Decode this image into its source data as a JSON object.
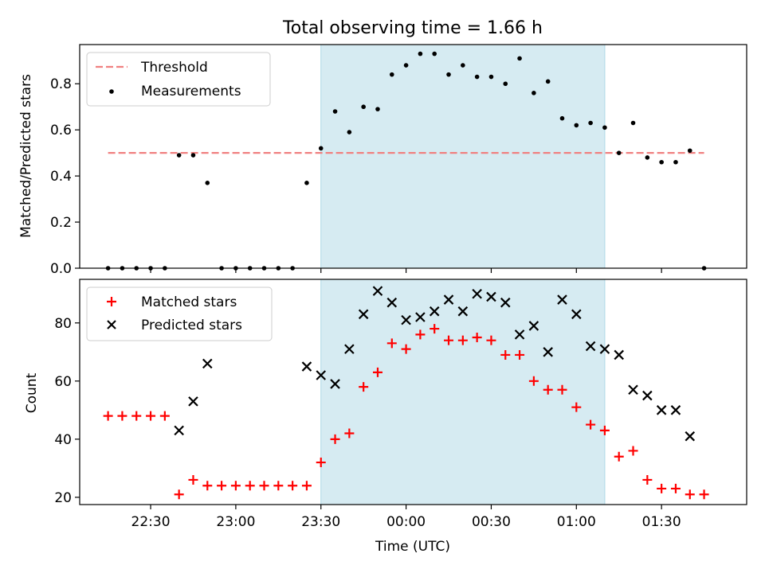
{
  "chart_data": [
    {
      "type": "scatter",
      "title": "Total observing time = 1.66 h",
      "xlabel": "",
      "ylabel": "Matched/Predicted stars",
      "ylim": [
        0,
        0.97
      ],
      "yticks": [
        0.0,
        0.2,
        0.4,
        0.6,
        0.8
      ],
      "ytick_labels": [
        "0.0",
        "0.2",
        "0.4",
        "0.6",
        "0.8"
      ],
      "legend_position": "top-left",
      "highlight_span": [
        "23:30",
        "01:10"
      ],
      "threshold": {
        "name": "Threshold",
        "value": 0.5,
        "x_start": "22:15",
        "x_end": "01:45",
        "color": "#f08080"
      },
      "series": [
        {
          "name": "Measurements",
          "color": "#000000",
          "marker": "dot",
          "x": [
            "22:15",
            "22:20",
            "22:25",
            "22:30",
            "22:35",
            "22:40",
            "22:45",
            "22:50",
            "22:55",
            "23:00",
            "23:05",
            "23:10",
            "23:15",
            "23:20",
            "23:25",
            "23:30",
            "23:35",
            "23:40",
            "23:45",
            "23:50",
            "23:55",
            "00:00",
            "00:05",
            "00:10",
            "00:15",
            "00:20",
            "00:25",
            "00:30",
            "00:35",
            "00:40",
            "00:45",
            "00:50",
            "00:55",
            "01:00",
            "01:05",
            "01:10",
            "01:15",
            "01:20",
            "01:25",
            "01:30",
            "01:35",
            "01:40",
            "01:45"
          ],
          "y": [
            0,
            0,
            0,
            0,
            0,
            0.49,
            0.49,
            0.37,
            0,
            0,
            0,
            0,
            0,
            0,
            0.37,
            0.52,
            0.68,
            0.59,
            0.7,
            0.69,
            0.84,
            0.88,
            0.93,
            0.93,
            0.84,
            0.88,
            0.83,
            0.83,
            0.8,
            0.91,
            0.76,
            0.81,
            0.65,
            0.62,
            0.63,
            0.61,
            0.5,
            0.63,
            0.48,
            0.46,
            0.46,
            0.51,
            0
          ]
        }
      ]
    },
    {
      "type": "scatter",
      "xlabel": "Time (UTC)",
      "ylabel": "Count",
      "ylim": [
        17.5,
        95
      ],
      "yticks": [
        20,
        40,
        60,
        80
      ],
      "ytick_labels": [
        "20",
        "40",
        "60",
        "80"
      ],
      "xticks": [
        "22:30",
        "23:00",
        "23:30",
        "00:00",
        "00:30",
        "01:00",
        "01:30"
      ],
      "xlim": [
        "22:05",
        "02:00"
      ],
      "legend_position": "top-left",
      "highlight_span": [
        "23:30",
        "01:10"
      ],
      "series": [
        {
          "name": "Matched stars",
          "color": "#ff0000",
          "marker": "plus",
          "x": [
            "22:15",
            "22:20",
            "22:25",
            "22:30",
            "22:35",
            "22:40",
            "22:45",
            "22:50",
            "22:55",
            "23:00",
            "23:05",
            "23:10",
            "23:15",
            "23:20",
            "23:25",
            "23:30",
            "23:35",
            "23:40",
            "23:45",
            "23:50",
            "23:55",
            "00:00",
            "00:05",
            "00:10",
            "00:15",
            "00:20",
            "00:25",
            "00:30",
            "00:35",
            "00:40",
            "00:45",
            "00:50",
            "00:55",
            "01:00",
            "01:05",
            "01:10",
            "01:15",
            "01:20",
            "01:25",
            "01:30",
            "01:35",
            "01:40",
            "01:45"
          ],
          "y": [
            48,
            48,
            48,
            48,
            48,
            21,
            26,
            24,
            24,
            24,
            24,
            24,
            24,
            24,
            24,
            32,
            40,
            42,
            58,
            63,
            73,
            71,
            76,
            78,
            74,
            74,
            75,
            74,
            69,
            69,
            60,
            57,
            57,
            51,
            45,
            43,
            34,
            36,
            26,
            23,
            23,
            21,
            21
          ]
        },
        {
          "name": "Predicted stars",
          "color": "#000000",
          "marker": "x",
          "x": [
            "22:40",
            "22:45",
            "22:50",
            "23:25",
            "23:30",
            "23:35",
            "23:40",
            "23:45",
            "23:50",
            "23:55",
            "00:00",
            "00:05",
            "00:10",
            "00:15",
            "00:20",
            "00:25",
            "00:30",
            "00:35",
            "00:40",
            "00:45",
            "00:50",
            "00:55",
            "01:00",
            "01:05",
            "01:10",
            "01:15",
            "01:20",
            "01:25",
            "01:30",
            "01:35",
            "01:40"
          ],
          "y": [
            43,
            53,
            66,
            65,
            62,
            59,
            71,
            83,
            91,
            87,
            81,
            82,
            84,
            88,
            84,
            90,
            89,
            87,
            76,
            79,
            70,
            88,
            83,
            72,
            71,
            69,
            57,
            55,
            50,
            50,
            41
          ]
        }
      ]
    }
  ]
}
